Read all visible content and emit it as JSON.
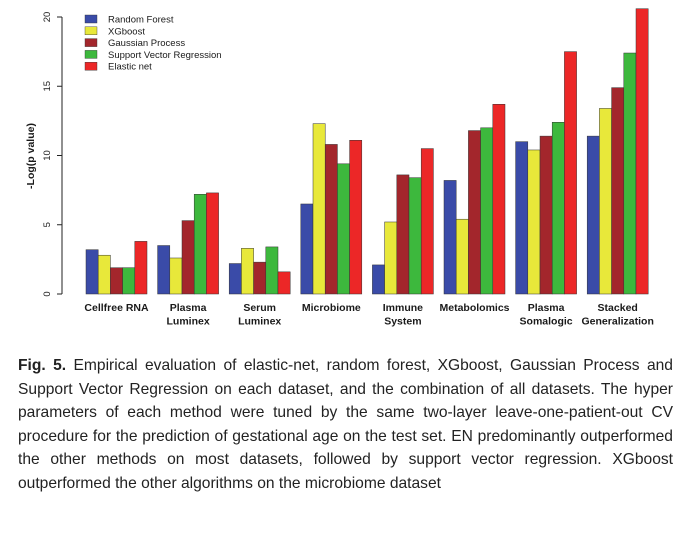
{
  "caption": {
    "label": "Fig. 5.",
    "text": "Empirical evaluation of elastic-net, random forest, XGboost, Gaussian Process and Support Vector Regression on each dataset, and the combination of all datasets. The hyper parameters of each method were tuned by the same two-layer leave-one-patient-out CV procedure for the prediction of gestational age on the test set. EN predominantly outperformed the other methods on most datasets, followed by support vector regression. XGboost outperformed the other algorithms on the microbiome dataset"
  },
  "colors": {
    "Random Forest": "#3a4ba8",
    "XGboost": "#e8e83a",
    "Gaussian Process": "#a3262c",
    "Support Vector Regression": "#3db83d",
    "Elastic net": "#ec2727"
  },
  "chart_data": {
    "type": "bar",
    "title": "",
    "xlabel": "",
    "ylabel": "-Log(p value)",
    "ylim": [
      0,
      21
    ],
    "yticks": [
      0,
      5,
      10,
      15,
      20
    ],
    "grid": false,
    "legend_position": "top-left",
    "categories": [
      [
        "Cellfree RNA"
      ],
      [
        "Plasma",
        "Luminex"
      ],
      [
        "Serum",
        "Luminex"
      ],
      [
        "Microbiome"
      ],
      [
        "Immune",
        "System"
      ],
      [
        "Metabolomics"
      ],
      [
        "Plasma",
        "Somalogic"
      ],
      [
        "Stacked",
        "Generalization"
      ]
    ],
    "series": [
      {
        "name": "Random Forest",
        "values": [
          3.2,
          3.5,
          2.2,
          6.5,
          2.1,
          8.2,
          11.0,
          11.4
        ]
      },
      {
        "name": "XGboost",
        "values": [
          2.8,
          2.6,
          3.3,
          12.3,
          5.2,
          5.4,
          10.4,
          13.4
        ]
      },
      {
        "name": "Gaussian Process",
        "values": [
          1.9,
          5.3,
          2.3,
          10.8,
          8.6,
          11.8,
          11.4,
          14.9
        ]
      },
      {
        "name": "Support Vector Regression",
        "values": [
          1.9,
          7.2,
          3.4,
          9.4,
          8.4,
          12.0,
          12.4,
          17.4
        ]
      },
      {
        "name": "Elastic net",
        "values": [
          3.8,
          7.3,
          1.6,
          11.1,
          10.5,
          13.7,
          17.5,
          20.6
        ]
      }
    ]
  }
}
